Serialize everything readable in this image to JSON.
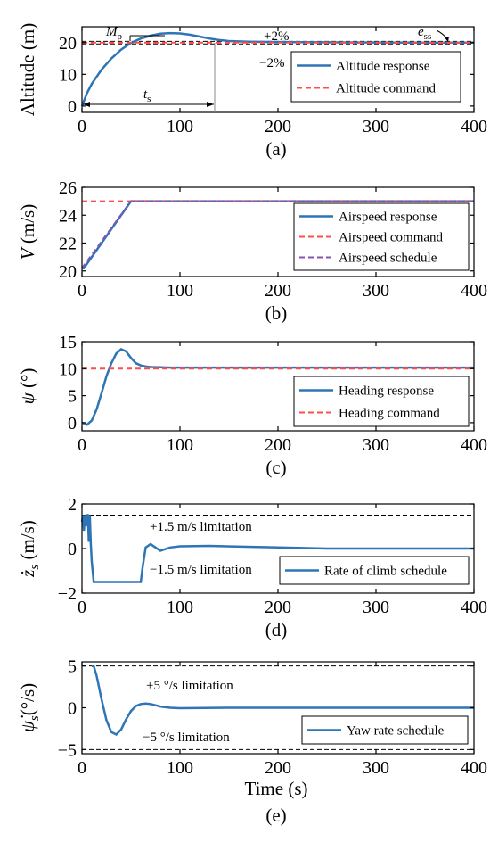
{
  "chart_data": [
    {
      "type": "line",
      "panel_label": "(a)",
      "ylabel": "Altitude (m)",
      "xlabel": "",
      "xlim": [
        0,
        400
      ],
      "ylim": [
        -2,
        25
      ],
      "xticks": [
        0,
        100,
        200,
        300,
        400
      ],
      "yticks": [
        0,
        10,
        20
      ],
      "legend_position": "right",
      "series": [
        {
          "name": "Altitude response",
          "color": "#2e75b6",
          "style": "solid",
          "x": [
            0,
            5,
            10,
            20,
            30,
            40,
            50,
            60,
            70,
            80,
            90,
            100,
            110,
            120,
            130,
            140,
            150,
            170,
            200,
            250,
            300,
            350,
            400
          ],
          "y": [
            0,
            4,
            7,
            11.5,
            15,
            17.8,
            19.9,
            21.3,
            22.2,
            22.8,
            23.0,
            22.9,
            22.5,
            21.9,
            21.3,
            20.8,
            20.5,
            20.3,
            20.2,
            20.1,
            20.05,
            20.0,
            20.0
          ]
        },
        {
          "name": "Altitude command",
          "color": "#ff4d4d",
          "style": "dashed",
          "x": [
            0,
            400
          ],
          "y": [
            20,
            20
          ]
        }
      ],
      "reference_lines": [
        {
          "y": 20.4,
          "label": "+2%"
        },
        {
          "y": 19.6,
          "label": "−2%"
        }
      ],
      "annotations": [
        "M",
        "p",
        "t",
        "s",
        "e",
        "ss"
      ]
    },
    {
      "type": "line",
      "panel_label": "(b)",
      "ylabel_var": "V",
      "ylabel_unit": " (m/s)",
      "xlim": [
        0,
        400
      ],
      "ylim": [
        19.6,
        26
      ],
      "xticks": [
        0,
        100,
        200,
        300,
        400
      ],
      "yticks": [
        20,
        22,
        24,
        26
      ],
      "legend_position": "right",
      "series": [
        {
          "name": "Airspeed response",
          "color": "#2e75b6",
          "style": "solid",
          "x": [
            0,
            2,
            50,
            53,
            400
          ],
          "y": [
            20.2,
            20.2,
            25.0,
            25.0,
            25.0
          ]
        },
        {
          "name": "Airspeed command",
          "color": "#ff4d4d",
          "style": "dashed",
          "x": [
            0,
            400
          ],
          "y": [
            25,
            25
          ]
        },
        {
          "name": "Airspeed schedule",
          "color": "#8a52b5",
          "style": "dashed",
          "x": [
            0,
            50,
            400
          ],
          "y": [
            20.2,
            25.0,
            25.0
          ]
        }
      ]
    },
    {
      "type": "line",
      "panel_label": "(c)",
      "ylabel_var": "ψ",
      "ylabel_unit": " (°)",
      "xlim": [
        0,
        400
      ],
      "ylim": [
        -1.5,
        15
      ],
      "xticks": [
        0,
        100,
        200,
        300,
        400
      ],
      "yticks": [
        0,
        5,
        10,
        15
      ],
      "legend_position": "right",
      "series": [
        {
          "name": "Heading response",
          "color": "#2e75b6",
          "style": "solid",
          "x": [
            0,
            5,
            10,
            15,
            20,
            25,
            30,
            35,
            40,
            45,
            50,
            55,
            60,
            65,
            70,
            80,
            90,
            100,
            400
          ],
          "y": [
            0,
            -0.4,
            0.4,
            2.5,
            5.5,
            8.6,
            11.0,
            12.8,
            13.6,
            13.2,
            12.0,
            11.0,
            10.6,
            10.4,
            10.3,
            10.25,
            10.2,
            10.2,
            10.2
          ]
        },
        {
          "name": "Heading command",
          "color": "#ff4d4d",
          "style": "dashed",
          "x": [
            0,
            400
          ],
          "y": [
            10,
            10
          ]
        }
      ]
    },
    {
      "type": "line",
      "panel_label": "(d)",
      "ylabel_var": "ż",
      "ylabel_sub": "s",
      "ylabel_unit": " (m/s)",
      "xlim": [
        0,
        400
      ],
      "ylim": [
        -2,
        2
      ],
      "xticks": [
        0,
        100,
        200,
        300,
        400
      ],
      "yticks": [
        -2,
        0,
        2
      ],
      "legend_position": "right",
      "series": [
        {
          "name": "Rate of climb schedule",
          "color": "#2e75b6",
          "style": "solid",
          "x": [
            0,
            1,
            2,
            3,
            4,
            5,
            6,
            7,
            8,
            9,
            10,
            12,
            14,
            60,
            62,
            65,
            70,
            75,
            80,
            90,
            100,
            130,
            200,
            250,
            300,
            400
          ],
          "y": [
            1.2,
            1.5,
            0.8,
            1.5,
            1.0,
            1.5,
            1.5,
            0.3,
            1.5,
            0.2,
            -0.6,
            -1.5,
            -1.5,
            -1.5,
            -0.8,
            0.05,
            0.2,
            0.05,
            -0.1,
            0.05,
            0.1,
            0.12,
            0.05,
            0.0,
            0.0,
            0.0
          ]
        }
      ],
      "reference_lines": [
        {
          "y": 1.5,
          "label": "+1.5 m/s limitation"
        },
        {
          "y": -1.5,
          "label": "−1.5 m/s limitation"
        }
      ]
    },
    {
      "type": "line",
      "panel_label": "(e)",
      "ylabel_var": "ψ̇",
      "ylabel_sub": "s",
      "ylabel_unit": "(°/s)",
      "xlabel": "Time (s)",
      "xlim": [
        0,
        400
      ],
      "ylim": [
        -5.5,
        5.5
      ],
      "xticks": [
        0,
        100,
        200,
        300,
        400
      ],
      "yticks": [
        -5,
        0,
        5
      ],
      "legend_position": "right",
      "series": [
        {
          "name": "Yaw rate schedule",
          "color": "#2e75b6",
          "style": "solid",
          "x": [
            10,
            12,
            15,
            20,
            25,
            30,
            35,
            40,
            45,
            50,
            55,
            60,
            65,
            70,
            75,
            80,
            90,
            100,
            150,
            400
          ],
          "y": [
            5,
            5,
            3.8,
            1.0,
            -1.5,
            -2.9,
            -3.2,
            -2.6,
            -1.4,
            -0.4,
            0.2,
            0.45,
            0.5,
            0.45,
            0.3,
            0.15,
            0.0,
            -0.05,
            0.0,
            0.0
          ]
        }
      ],
      "reference_lines": [
        {
          "y": 5,
          "label": "+5 °/s limitation"
        },
        {
          "y": -5,
          "label": "−5 °/s limitation"
        }
      ]
    }
  ]
}
